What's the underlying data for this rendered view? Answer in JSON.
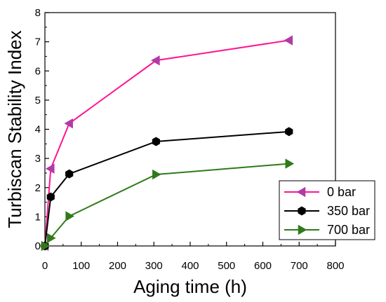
{
  "chart_data": {
    "type": "line",
    "xlabel": "Aging time (h)",
    "ylabel": "Turbiscan Stability Index",
    "xlim": [
      0,
      800
    ],
    "ylim": [
      0,
      8
    ],
    "xticks": [
      "0",
      "100",
      "200",
      "300",
      "400",
      "500",
      "600",
      "700",
      "800"
    ],
    "yticks": [
      "0",
      "1",
      "2",
      "3",
      "4",
      "5",
      "6",
      "7",
      "8"
    ],
    "grid": false,
    "legend_position": "bottom-right",
    "series": [
      {
        "name": "0 bar",
        "color": "#ff1493",
        "marker_color": "#b23aa6",
        "marker": "triangle-left",
        "x": [
          0,
          16,
          67,
          306,
          672
        ],
        "y": [
          0,
          2.65,
          4.2,
          6.36,
          7.05
        ]
      },
      {
        "name": "350 bar",
        "color": "#000000",
        "marker_color": "#000000",
        "marker": "hexagon",
        "x": [
          0,
          16,
          67,
          306,
          672
        ],
        "y": [
          0,
          1.68,
          2.47,
          3.58,
          3.92
        ]
      },
      {
        "name": "700 bar",
        "color": "#2f7a1a",
        "marker_color": "#2f7a1a",
        "marker": "triangle-right",
        "x": [
          0,
          16,
          67,
          306,
          672
        ],
        "y": [
          0,
          0.27,
          1.02,
          2.45,
          2.82
        ]
      }
    ]
  }
}
